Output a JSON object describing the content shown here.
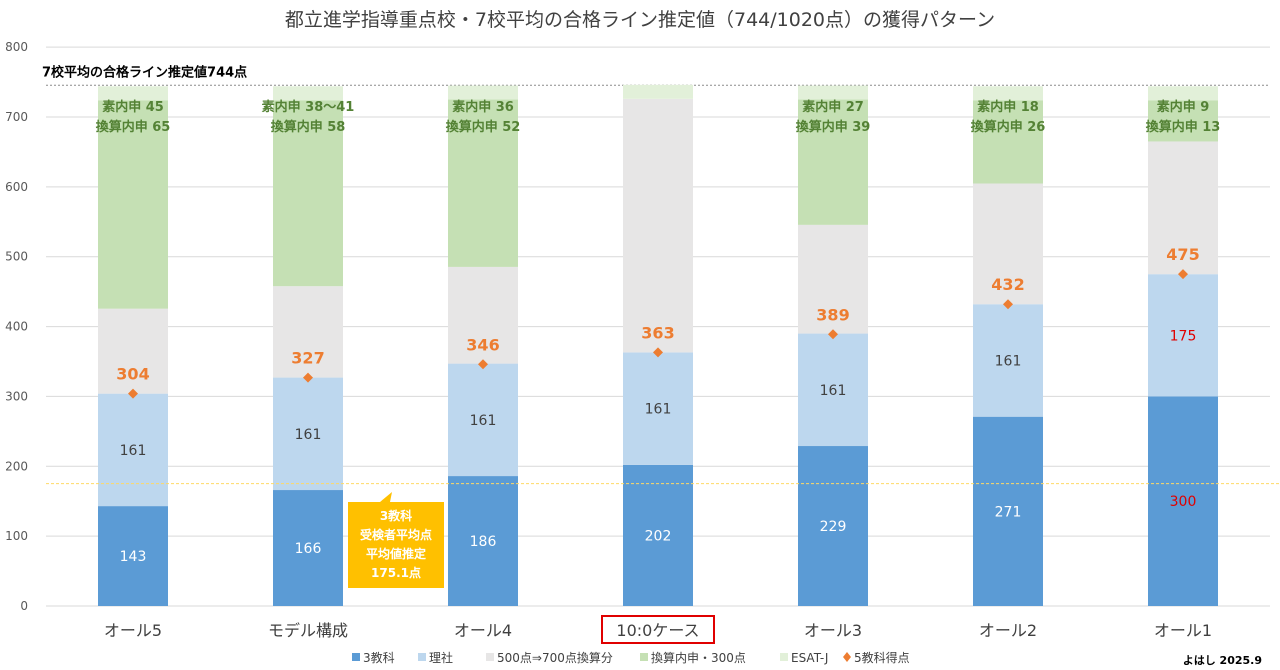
{
  "chart_data": {
    "type": "bar",
    "stacked": true,
    "title": "都立進学指導重点校・7校平均の合格ライン推定値（744/1020点）の獲得パターン",
    "ylim": [
      0,
      800
    ],
    "yticks": [
      0,
      100,
      200,
      300,
      400,
      500,
      600,
      700,
      800
    ],
    "grid": true,
    "legend_position": "bottom",
    "categories": [
      "オール5",
      "モデル構成",
      "オール4",
      "10:0ケース",
      "オール3",
      "オール2",
      "オール1"
    ],
    "highlighted_category": "10:0ケース",
    "series": [
      {
        "name": "3教科",
        "color": "#5b9bd5",
        "values": [
          143,
          166,
          186,
          202,
          229,
          271,
          300
        ],
        "labels": [
          "143",
          "166",
          "186",
          "202",
          "229",
          "271",
          "300"
        ]
      },
      {
        "name": "理社",
        "color": "#bdd7ee",
        "values": [
          161,
          161,
          161,
          161,
          161,
          161,
          175
        ],
        "labels": [
          "161",
          "161",
          "161",
          "161",
          "161",
          "161",
          "175"
        ]
      },
      {
        "name": "500点⇒700点換算分",
        "color": "#e7e6e6",
        "values": [
          121.6,
          130.8,
          138.4,
          363,
          155.6,
          172.8,
          190
        ]
      },
      {
        "name": "換算内申・300点",
        "color": "#c5e0b4",
        "values": [
          298.4,
          266.2,
          239.6,
          0,
          179.4,
          119.2,
          59
        ]
      },
      {
        "name": "ESAT-J",
        "color": "#e2f0d9",
        "values": [
          20,
          20,
          20,
          20,
          20,
          20,
          20
        ]
      }
    ],
    "line_series": {
      "name": "5教科得点",
      "color": "#ed7d31",
      "values": [
        304,
        327,
        346,
        363,
        389,
        432,
        475
      ]
    },
    "naishin_labels": [
      [
        "素内申 45",
        "換算内申 65"
      ],
      [
        "素内申 38〜41",
        "換算内申 58"
      ],
      [
        "素内申 36",
        "換算内申 52"
      ],
      null,
      [
        "素内申 27",
        "換算内申 39"
      ],
      [
        "素内申 18",
        "換算内申 26"
      ],
      [
        "素内申 9",
        "換算内申 13"
      ]
    ],
    "reference_lines": [
      {
        "label": "7校平均の合格ライン推定値744点",
        "value": 744
      },
      {
        "label": "3教科 受検者平均点 平均値推定 175.1点",
        "value": 175.1
      }
    ],
    "callout": [
      "3教科",
      "受検者平均点",
      "平均値推定",
      "175.1点"
    ]
  },
  "credit": "よはし 2025.9"
}
